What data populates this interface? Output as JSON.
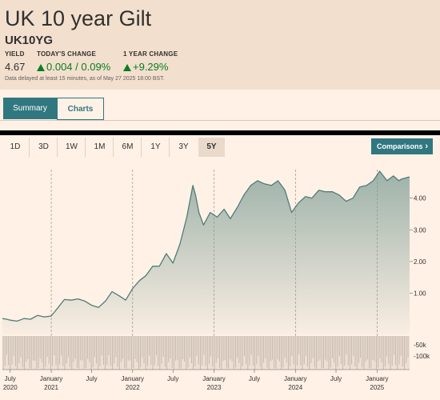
{
  "header": {
    "title": "UK 10 year Gilt",
    "symbol": "UK10YG",
    "yield_label": "YIELD",
    "yield_value": "4.67",
    "todays_change_label": "TODAY'S CHANGE",
    "todays_change_value": "0.004 / 0.09%",
    "year_change_label": "1 YEAR CHANGE",
    "year_change_value": "+9.29%",
    "delayed_text": "Data delayed at least 15 minutes, as of May 27 2025 18:00 BST."
  },
  "tabs": {
    "summary": "Summary",
    "charts": "Charts"
  },
  "ranges": [
    "1D",
    "3D",
    "1W",
    "1M",
    "6M",
    "1Y",
    "3Y",
    "5Y"
  ],
  "active_range": "5Y",
  "comparisons_label": "Comparisons",
  "colors": {
    "accent": "#317780",
    "background": "#fff1e5",
    "header_bg": "#f2dfce",
    "positive": "#0a7d1f",
    "line": "#4f7d78"
  },
  "chart_data": {
    "type": "area",
    "y_ticks": [
      "1.00",
      "2.00",
      "3.00",
      "4.00"
    ],
    "y_tick_values": [
      1,
      2,
      3,
      4
    ],
    "ylim": [
      -0.3,
      4.9
    ],
    "volume_ticks": [
      "-50k",
      "-100k"
    ],
    "x_tick_labels": [
      {
        "month": "July",
        "year": "2020"
      },
      {
        "month": "January",
        "year": "2021"
      },
      {
        "month": "July",
        "year": ""
      },
      {
        "month": "January",
        "year": "2022"
      },
      {
        "month": "July",
        "year": ""
      },
      {
        "month": "January",
        "year": "2023"
      },
      {
        "month": "July",
        "year": ""
      },
      {
        "month": "January",
        "year": "2024"
      },
      {
        "month": "July",
        "year": ""
      },
      {
        "month": "January",
        "year": "2025"
      },
      {
        "month": "July",
        "year": ""
      }
    ],
    "x_tick_dates": [
      "2020-07-01",
      "2021-01-01",
      "2021-07-01",
      "2022-01-01",
      "2022-07-01",
      "2023-01-01",
      "2023-07-01",
      "2024-01-01",
      "2024-07-01",
      "2025-01-01",
      "2025-07-01"
    ],
    "x_range": [
      "2020-05-27",
      "2025-05-27"
    ],
    "series": [
      {
        "dates": [
          "2020-05-27",
          "2020-06-15",
          "2020-07-01",
          "2020-08-01",
          "2020-09-01",
          "2020-10-01",
          "2020-11-01",
          "2020-12-01",
          "2021-01-01",
          "2021-02-01",
          "2021-03-01",
          "2021-04-01",
          "2021-05-01",
          "2021-06-01",
          "2021-07-01",
          "2021-08-01",
          "2021-09-01",
          "2021-10-01",
          "2021-11-01",
          "2021-12-01",
          "2022-01-01",
          "2022-02-01",
          "2022-03-01",
          "2022-04-01",
          "2022-05-01",
          "2022-06-01",
          "2022-07-01",
          "2022-08-01",
          "2022-09-01",
          "2022-09-28",
          "2022-10-10",
          "2022-10-25",
          "2022-11-15",
          "2022-12-15",
          "2023-01-15",
          "2023-02-15",
          "2023-03-15",
          "2023-04-15",
          "2023-05-15",
          "2023-06-15",
          "2023-07-15",
          "2023-08-15",
          "2023-09-15",
          "2023-10-15",
          "2023-11-15",
          "2023-12-15",
          "2024-01-15",
          "2024-02-15",
          "2024-03-15",
          "2024-04-15",
          "2024-05-15",
          "2024-06-15",
          "2024-07-15",
          "2024-08-15",
          "2024-09-15",
          "2024-10-15",
          "2024-11-15",
          "2024-12-15",
          "2025-01-13",
          "2025-02-15",
          "2025-03-15",
          "2025-04-09",
          "2025-04-20",
          "2025-05-27"
        ],
        "values": [
          0.2,
          0.18,
          0.15,
          0.12,
          0.2,
          0.18,
          0.3,
          0.25,
          0.28,
          0.55,
          0.8,
          0.78,
          0.82,
          0.75,
          0.62,
          0.55,
          0.75,
          1.05,
          0.92,
          0.78,
          1.15,
          1.4,
          1.55,
          1.85,
          1.85,
          2.25,
          1.95,
          2.55,
          3.4,
          4.4,
          4.1,
          3.55,
          3.15,
          3.55,
          3.4,
          3.65,
          3.35,
          3.7,
          4.1,
          4.4,
          4.55,
          4.45,
          4.4,
          4.55,
          4.25,
          3.55,
          3.85,
          4.05,
          4.0,
          4.25,
          4.2,
          4.2,
          4.1,
          3.9,
          4.0,
          4.35,
          4.4,
          4.55,
          4.85,
          4.55,
          4.7,
          4.55,
          4.6,
          4.67
        ]
      }
    ]
  }
}
